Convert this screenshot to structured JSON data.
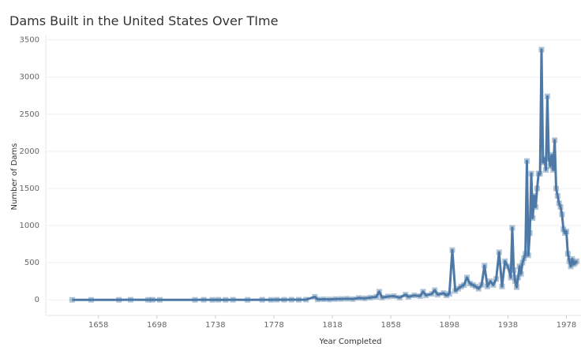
{
  "chart_data": {
    "type": "line",
    "title": "Dams Built in the United States Over TIme",
    "x_label": "Year Completed",
    "y_label": "Number of Dams",
    "x": [
      1640,
      1653,
      1672,
      1680,
      1692,
      1695,
      1700,
      1724,
      1730,
      1736,
      1740,
      1745,
      1750,
      1760,
      1770,
      1776,
      1780,
      1785,
      1790,
      1795,
      1800,
      1806,
      1808,
      1812,
      1816,
      1820,
      1824,
      1828,
      1832,
      1836,
      1840,
      1844,
      1848,
      1850,
      1852,
      1856,
      1860,
      1864,
      1868,
      1870,
      1874,
      1878,
      1880,
      1882,
      1886,
      1888,
      1890,
      1894,
      1896,
      1898,
      1900,
      1902,
      1904,
      1906,
      1908,
      1910,
      1912,
      1914,
      1916,
      1918,
      1920,
      1922,
      1924,
      1926,
      1928,
      1930,
      1932,
      1934,
      1936,
      1938,
      1940,
      1941,
      1942,
      1943,
      1944,
      1945,
      1946,
      1947,
      1948,
      1949,
      1950,
      1951,
      1952,
      1953,
      1954,
      1955,
      1956,
      1957,
      1958,
      1959,
      1960,
      1961,
      1962,
      1963,
      1964,
      1965,
      1966,
      1967,
      1968,
      1969,
      1970,
      1971,
      1972,
      1973,
      1974,
      1975,
      1976,
      1977,
      1978,
      1979,
      1980,
      1981,
      1982,
      1983,
      1984,
      1985
    ],
    "series": [
      {
        "name": "Number of Dams",
        "color": "#4e79a7",
        "values": [
          0,
          0,
          0,
          1,
          0,
          1,
          0,
          0,
          1,
          0,
          1,
          0,
          1,
          0,
          1,
          0,
          2,
          1,
          2,
          1,
          3,
          40,
          5,
          8,
          5,
          10,
          12,
          15,
          10,
          25,
          20,
          30,
          40,
          110,
          30,
          45,
          50,
          30,
          70,
          40,
          60,
          50,
          110,
          60,
          80,
          130,
          70,
          90,
          60,
          80,
          670,
          120,
          150,
          180,
          200,
          300,
          220,
          200,
          180,
          150,
          200,
          460,
          180,
          250,
          200,
          280,
          640,
          180,
          520,
          450,
          300,
          970,
          400,
          250,
          170,
          300,
          450,
          350,
          500,
          560,
          620,
          1870,
          600,
          900,
          1700,
          1100,
          1400,
          1250,
          1500,
          1700,
          1700,
          3370,
          1850,
          1900,
          1750,
          2740,
          1900,
          1800,
          1950,
          1750,
          2150,
          1500,
          1400,
          1300,
          1250,
          1150,
          950,
          900,
          920,
          620,
          520,
          450,
          550,
          480,
          500,
          520
        ]
      }
    ],
    "xlim": [
      1622,
      1988
    ],
    "xticks": [
      1658,
      1698,
      1738,
      1778,
      1818,
      1858,
      1898,
      1938,
      1978
    ],
    "ylim": [
      -210,
      3560
    ],
    "yticks": [
      0,
      500,
      1000,
      1500,
      2000,
      2500,
      3000,
      3500
    ],
    "grid": true
  }
}
